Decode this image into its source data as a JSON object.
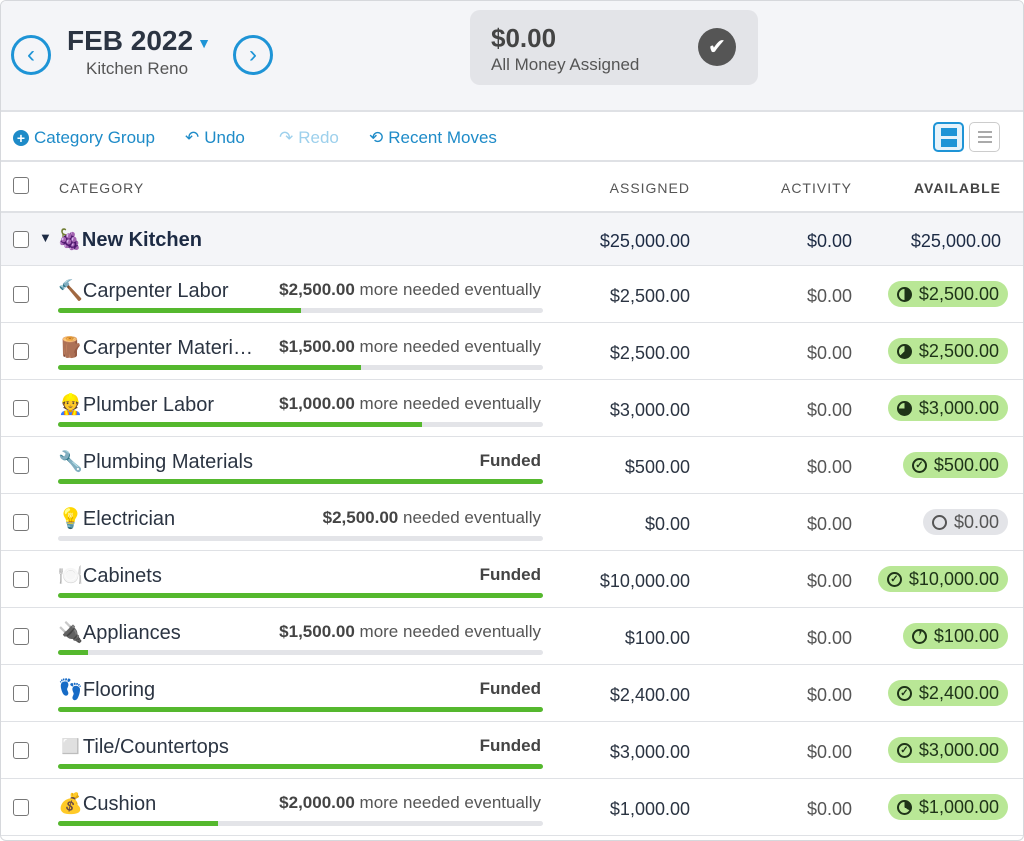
{
  "header": {
    "month": "FEB 2022",
    "budget_name": "Kitchen Reno",
    "to_be_assigned": "$0.00",
    "to_be_assigned_label": "All Money Assigned"
  },
  "toolbar": {
    "category_group": "Category Group",
    "undo": "Undo",
    "redo": "Redo",
    "recent_moves": "Recent Moves"
  },
  "columns": {
    "category": "CATEGORY",
    "assigned": "ASSIGNED",
    "activity": "ACTIVITY",
    "available": "AVAILABLE"
  },
  "group": {
    "emoji": "🍇",
    "name": "New Kitchen",
    "assigned": "$25,000.00",
    "activity": "$0.00",
    "available": "$25,000.00"
  },
  "rows": [
    {
      "emoji": "🔨",
      "name": "Carpenter Labor",
      "need_amount": "$2,500.00",
      "need_text": "more needed eventually",
      "progress": 0.5,
      "assigned": "$2,500.00",
      "activity": "$0.00",
      "available": "$2,500.00",
      "status": "partial",
      "color": "#b9e796"
    },
    {
      "emoji": "🪵",
      "name": "Carpenter Materi…",
      "need_amount": "$1,500.00",
      "need_text": "more needed eventually",
      "progress": 0.625,
      "assigned": "$2,500.00",
      "activity": "$0.00",
      "available": "$2,500.00",
      "status": "partial",
      "color": "#b9e796"
    },
    {
      "emoji": "👷",
      "name": "Plumber Labor",
      "need_amount": "$1,000.00",
      "need_text": "more needed eventually",
      "progress": 0.75,
      "assigned": "$3,000.00",
      "activity": "$0.00",
      "available": "$3,000.00",
      "status": "partial",
      "color": "#b9e796"
    },
    {
      "emoji": "🔧",
      "name": "Plumbing Materials",
      "need_amount": "",
      "need_text": "Funded",
      "progress": 1,
      "assigned": "$500.00",
      "activity": "$0.00",
      "available": "$500.00",
      "status": "funded",
      "color": "#b9e796"
    },
    {
      "emoji": "💡",
      "name": "Electrician",
      "need_amount": "$2,500.00",
      "need_text": "needed eventually",
      "progress": 0,
      "assigned": "$0.00",
      "activity": "$0.00",
      "available": "$0.00",
      "status": "empty",
      "color": "#e3e4e8"
    },
    {
      "emoji": "🍽️",
      "name": "Cabinets",
      "need_amount": "",
      "need_text": "Funded",
      "progress": 1,
      "assigned": "$10,000.00",
      "activity": "$0.00",
      "available": "$10,000.00",
      "status": "funded",
      "color": "#b9e796"
    },
    {
      "emoji": "🔌",
      "name": "Appliances",
      "need_amount": "$1,500.00",
      "need_text": "more needed eventually",
      "progress": 0.0625,
      "assigned": "$100.00",
      "activity": "$0.00",
      "available": "$100.00",
      "status": "partial",
      "color": "#b9e796"
    },
    {
      "emoji": "👣",
      "name": "Flooring",
      "need_amount": "",
      "need_text": "Funded",
      "progress": 1,
      "assigned": "$2,400.00",
      "activity": "$0.00",
      "available": "$2,400.00",
      "status": "funded",
      "color": "#b9e796"
    },
    {
      "emoji": "◻️",
      "name": "Tile/Countertops",
      "need_amount": "",
      "need_text": "Funded",
      "progress": 1,
      "assigned": "$3,000.00",
      "activity": "$0.00",
      "available": "$3,000.00",
      "status": "funded",
      "color": "#b9e796"
    },
    {
      "emoji": "💰",
      "name": "Cushion",
      "need_amount": "$2,000.00",
      "need_text": "more needed eventually",
      "progress": 0.33,
      "assigned": "$1,000.00",
      "activity": "$0.00",
      "available": "$1,000.00",
      "status": "partial",
      "color": "#b9e796"
    }
  ]
}
